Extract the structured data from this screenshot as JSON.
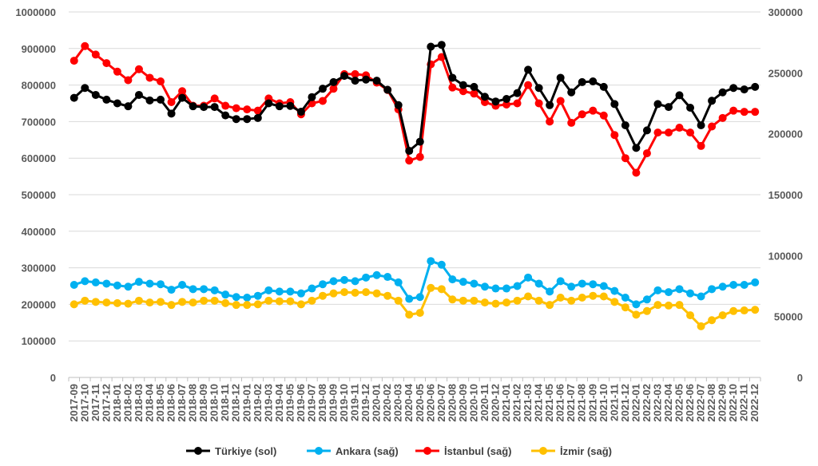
{
  "chart_data": {
    "type": "line",
    "x": [
      "2017-09",
      "2017-10",
      "2017-11",
      "2017-12",
      "2018-01",
      "2018-02",
      "2018-03",
      "2018-04",
      "2018-05",
      "2018-06",
      "2018-07",
      "2018-08",
      "2018-09",
      "2018-10",
      "2018-11",
      "2018-12",
      "2019-01",
      "2019-02",
      "2019-03",
      "2019-04",
      "2019-05",
      "2019-06",
      "2019-07",
      "2019-08",
      "2019-09",
      "2019-10",
      "2019-11",
      "2019-12",
      "2020-01",
      "2020-02",
      "2020-03",
      "2020-04",
      "2020-05",
      "2020-06",
      "2020-07",
      "2020-08",
      "2020-09",
      "2020-10",
      "2020-11",
      "2020-12",
      "2021-01",
      "2021-02",
      "2021-03",
      "2021-04",
      "2021-05",
      "2021-06",
      "2021-07",
      "2021-08",
      "2021-09",
      "2021-10",
      "2021-11",
      "2021-12",
      "2022-01",
      "2022-02",
      "2022-03",
      "2022-04",
      "2022-05",
      "2022-06",
      "2022-07",
      "2022-08",
      "2022-09",
      "2022-10",
      "2022-11",
      "2022-12"
    ],
    "left_axis": {
      "ylim": [
        0,
        1000000
      ],
      "ticks": [
        "0",
        "100000",
        "200000",
        "300000",
        "400000",
        "500000",
        "600000",
        "700000",
        "800000",
        "900000",
        "1000000"
      ]
    },
    "right_axis": {
      "ylim": [
        0,
        300000
      ],
      "ticks": [
        "0",
        "50000",
        "100000",
        "150000",
        "200000",
        "250000",
        "300000"
      ]
    },
    "legend_position": "bottom",
    "grid": "horizontal",
    "series": [
      {
        "name": "Türkiye (sol)",
        "axis": "left",
        "color": "#000000",
        "values": [
          765000,
          792000,
          773000,
          760000,
          750000,
          742000,
          773000,
          758000,
          760000,
          722000,
          765000,
          742000,
          740000,
          740000,
          717000,
          707000,
          707000,
          710000,
          750000,
          742000,
          743000,
          727000,
          767000,
          790000,
          808000,
          825000,
          812000,
          815000,
          812000,
          787000,
          745000,
          620000,
          645000,
          905000,
          910000,
          820000,
          800000,
          795000,
          768000,
          755000,
          762000,
          778000,
          842000,
          792000,
          745000,
          820000,
          780000,
          808000,
          810000,
          795000,
          748000,
          690000,
          628000,
          676000,
          748000,
          740000,
          772000,
          738000,
          690000,
          757000,
          780000,
          792000,
          788000,
          795000
        ]
      },
      {
        "name": "Ankara (sağ)",
        "axis": "right",
        "color": "#00b0f0",
        "values": [
          76000,
          79000,
          78000,
          77000,
          75500,
          74500,
          78500,
          77000,
          76500,
          72000,
          76000,
          72500,
          72500,
          71500,
          68000,
          66000,
          65500,
          67000,
          71500,
          70500,
          70500,
          69000,
          73000,
          76500,
          79000,
          80000,
          79000,
          82000,
          84000,
          82500,
          78000,
          64500,
          66000,
          95500,
          92500,
          80500,
          78500,
          77000,
          74500,
          73000,
          73000,
          75000,
          82000,
          77000,
          70500,
          79000,
          74500,
          77000,
          76500,
          75000,
          71000,
          65500,
          60000,
          64000,
          71500,
          70000,
          72500,
          69000,
          66500,
          72500,
          74500,
          76000,
          76000,
          78000
        ]
      },
      {
        "name": "İstanbul (sağ)",
        "axis": "right",
        "color": "#ff0000",
        "values": [
          260000,
          272000,
          265000,
          258000,
          251000,
          244000,
          253000,
          246000,
          243000,
          226000,
          235000,
          223000,
          223000,
          229000,
          223000,
          221000,
          220000,
          219000,
          229000,
          225000,
          226000,
          216000,
          225000,
          227000,
          237000,
          249000,
          249000,
          248000,
          242000,
          236000,
          220000,
          178000,
          181000,
          257000,
          263000,
          238000,
          235000,
          233000,
          226000,
          223000,
          224000,
          225000,
          240000,
          225000,
          210000,
          227000,
          209000,
          216000,
          219000,
          215000,
          199000,
          180000,
          168000,
          184000,
          201000,
          201000,
          205000,
          201000,
          190000,
          206000,
          213000,
          219000,
          218000,
          218000
        ]
      },
      {
        "name": "İzmir (sağ)",
        "axis": "right",
        "color": "#ffc000",
        "values": [
          60000,
          63000,
          62000,
          61500,
          61000,
          60500,
          63000,
          61500,
          62000,
          59500,
          62000,
          61500,
          63000,
          63000,
          61000,
          59500,
          59500,
          60000,
          63000,
          62500,
          62500,
          60000,
          63000,
          67000,
          69000,
          70000,
          69500,
          70000,
          69000,
          67000,
          63000,
          51500,
          53000,
          73500,
          72500,
          64000,
          63000,
          63000,
          61500,
          60500,
          61500,
          63000,
          66500,
          63000,
          59500,
          65500,
          63000,
          65500,
          67000,
          66500,
          62000,
          57500,
          51500,
          54500,
          59500,
          59000,
          59500,
          51000,
          42000,
          47000,
          51000,
          54500,
          55000,
          55500
        ]
      }
    ]
  }
}
